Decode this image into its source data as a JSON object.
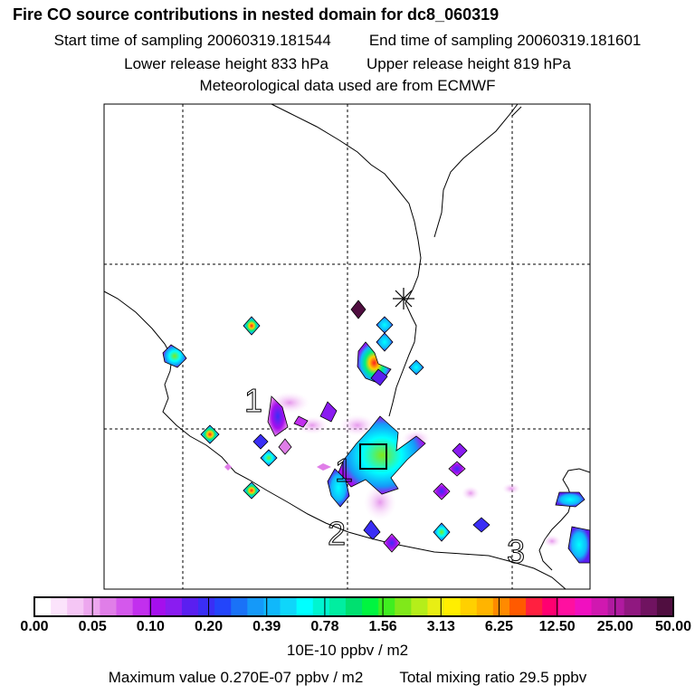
{
  "header": {
    "title": "Fire CO source contributions in nested domain for dc8_060319",
    "start_time": "Start time of sampling 20060319.181544",
    "end_time": "End time of sampling 20060319.181601",
    "lower_height": "Lower release height  833 hPa",
    "upper_height": "Upper release height  819 hPa",
    "met_data": "Meteorological data used are from ECMWF"
  },
  "map": {
    "track_labels": [
      "1",
      "1",
      "2",
      "3"
    ],
    "colors": {
      "coast": "#000000",
      "grid": "#000000",
      "release_box": "#000000"
    }
  },
  "colorbar": {
    "levels": [
      "0.00",
      "0.05",
      "0.10",
      "0.20",
      "0.39",
      "0.78",
      "1.56",
      "3.13",
      "6.25",
      "12.50",
      "25.00",
      "50.00"
    ],
    "segment_colors": [
      "#ffffff",
      "#fbe3fb",
      "#f5c6f5",
      "#eda7ef",
      "#e07ee8",
      "#d458ec",
      "#c22fee",
      "#a50fed",
      "#8a1cf0",
      "#5a1ff0",
      "#3a2ef5",
      "#2345fb",
      "#1a72f7",
      "#1599f8",
      "#10b8fb",
      "#0fd6fa",
      "#00ffff",
      "#00f5d0",
      "#00eea0",
      "#00e070",
      "#00f540",
      "#40ee20",
      "#80e81a",
      "#b5ee1a",
      "#e8ee14",
      "#ffee00",
      "#ffd000",
      "#ffb400",
      "#ff8a00",
      "#ff5a00",
      "#ff2040",
      "#ff0070",
      "#ff10a0",
      "#f010c0",
      "#d018b0",
      "#b01aa0",
      "#901880",
      "#701360",
      "#500e40"
    ],
    "units": "10E-10 ppbv / m2"
  },
  "footer": {
    "max_value": "Maximum value  0.270E-07 ppbv / m2",
    "total_mixing": "Total mixing ratio       29.5 ppbv"
  }
}
